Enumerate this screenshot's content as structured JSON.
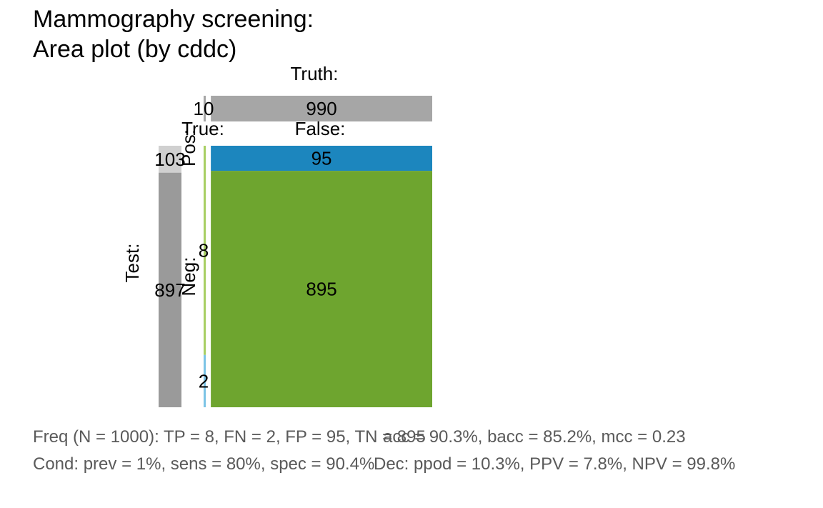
{
  "title_line1": "Mammography screening:",
  "title_line2": "Area plot (by cddc)",
  "chart_data": {
    "type": "area",
    "truth_label": "Truth:",
    "test_label": "Test:",
    "true_label": "True:",
    "false_label": "False:",
    "pos_label": "Pos:",
    "neg_label": "Neg:",
    "N": 1000,
    "cond_true": 10,
    "cond_false": 990,
    "dec_pos": 103,
    "dec_neg": 897,
    "cells": {
      "TP": 8,
      "FN": 2,
      "FP": 95,
      "TN": 895
    },
    "colors": {
      "margin_bar": "#a6a6a6",
      "dec_pos_bar": "#d0d0d0",
      "dec_neg_bar": "#9a9a9a",
      "TP": "#a8cf64",
      "FN": "#7cc4e6",
      "FP": "#1c86be",
      "TN": "#6ea52f"
    }
  },
  "footer": {
    "freq_line": "Freq (N = 1000):  TP = 8, FN = 2, FP = 95, TN = 895",
    "freq_acc": "acc = 90.3%, bacc = 85.2%, mcc = 0.23",
    "cond_line": "Cond:  prev = 1%, sens = 80%, spec = 90.4%",
    "cond_dec": "Dec:  ppod = 10.3%, PPV = 7.8%, NPV = 99.8%"
  }
}
